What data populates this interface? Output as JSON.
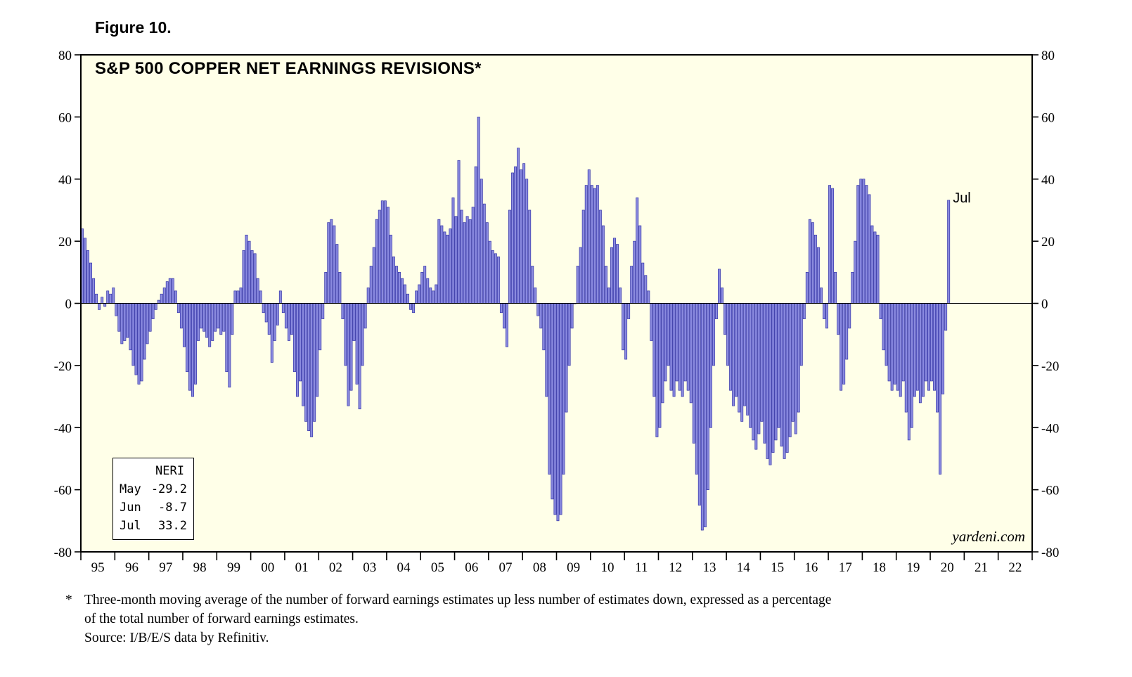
{
  "figure": {
    "label": "Figure 10."
  },
  "chart": {
    "title": "S&P 500 COPPER NET EARNINGS REVISIONS*",
    "watermark": "yardeni.com",
    "last_label": "Jul"
  },
  "legend": {
    "title": "NERI",
    "rows": [
      {
        "month": "May",
        "value": "-29.2"
      },
      {
        "month": "Jun",
        "value": "-8.7"
      },
      {
        "month": "Jul",
        "value": "33.2"
      }
    ]
  },
  "footnote": {
    "marker": "*",
    "line1": "Three-month moving average of the number of forward earnings estimates up less number of estimates down, expressed as a percentage",
    "line2": "of the total number of forward earnings estimates.",
    "line3": "Source: I/B/E/S data by Refinitiv."
  },
  "chart_data": {
    "type": "bar",
    "title": "S&P 500 COPPER NET EARNINGS REVISIONS*",
    "xlabel": "",
    "ylabel": "",
    "ylim": [
      -80,
      80
    ],
    "yticks": [
      -80,
      -60,
      -40,
      -20,
      0,
      20,
      40,
      60,
      80
    ],
    "grid": false,
    "legend_position": "bottom-left-box",
    "x_start": "Jan 1995",
    "x_end_data": "Jul 2020",
    "axis_total_months": 336,
    "year_labels": [
      "95",
      "96",
      "97",
      "98",
      "99",
      "00",
      "01",
      "02",
      "03",
      "04",
      "05",
      "06",
      "07",
      "08",
      "09",
      "10",
      "11",
      "12",
      "13",
      "14",
      "15",
      "16",
      "17",
      "18",
      "19",
      "20",
      "21",
      "22"
    ],
    "plot_bg": "#FFFFE8",
    "bar_color": "#8A8ADF",
    "bar_edge": "#3434A8",
    "last_point": {
      "label": "Jul",
      "value": 33.2
    },
    "series": [
      {
        "name": "NERI",
        "frequency": "monthly",
        "monthly_values": [
          24,
          21,
          17,
          13,
          8,
          3,
          -2,
          2,
          -1,
          4,
          3,
          5,
          -4,
          -9,
          -13,
          -12,
          -11,
          -15,
          -20,
          -23,
          -26,
          -25,
          -18,
          -13,
          -9,
          -5,
          -2,
          1,
          3,
          5,
          7,
          8,
          8,
          4,
          -3,
          -8,
          -14,
          -22,
          -28,
          -30,
          -26,
          -12,
          -8,
          -9,
          -11,
          -14,
          -12,
          -9,
          -8,
          -10,
          -9,
          -22,
          -27,
          -10,
          4,
          4,
          5,
          17,
          22,
          20,
          17,
          16,
          8,
          4,
          -3,
          -6,
          -10,
          -19,
          -12,
          -7,
          4,
          -3,
          -8,
          -12,
          -10,
          -22,
          -30,
          -25,
          -33,
          -38,
          -41,
          -43,
          -38,
          -30,
          -15,
          -5,
          10,
          26,
          27,
          25,
          19,
          10,
          -5,
          -20,
          -33,
          -28,
          -12,
          -26,
          -34,
          -20,
          -8,
          5,
          12,
          18,
          27,
          30,
          33,
          33,
          31,
          22,
          15,
          12,
          10,
          8,
          6,
          3,
          -2,
          -3,
          4,
          6,
          10,
          12,
          8,
          5,
          4,
          6,
          27,
          25,
          23,
          22,
          24,
          34,
          28,
          46,
          30,
          26,
          28,
          27,
          31,
          44,
          60,
          40,
          32,
          26,
          20,
          17,
          16,
          15,
          -3,
          -8,
          -14,
          30,
          42,
          44,
          50,
          43,
          45,
          40,
          30,
          12,
          5,
          -4,
          -8,
          -15,
          -30,
          -55,
          -63,
          -68,
          -70,
          -68,
          -55,
          -35,
          -20,
          -8,
          0,
          12,
          18,
          30,
          38,
          43,
          38,
          37,
          38,
          30,
          25,
          12,
          5,
          18,
          21,
          19,
          5,
          -15,
          -18,
          -5,
          12,
          20,
          34,
          25,
          13,
          9,
          4,
          -12,
          -30,
          -43,
          -40,
          -32,
          -25,
          -20,
          -28,
          -30,
          -25,
          -28,
          -30,
          -25,
          -28,
          -32,
          -45,
          -55,
          -65,
          -73,
          -72,
          -60,
          -40,
          -20,
          -5,
          11,
          5,
          -10,
          -20,
          -28,
          -33,
          -30,
          -35,
          -38,
          -33,
          -36,
          -40,
          -44,
          -47,
          -42,
          -38,
          -45,
          -50,
          -52,
          -48,
          -44,
          -40,
          -46,
          -50,
          -48,
          -43,
          -38,
          -42,
          -35,
          -20,
          -5,
          10,
          27,
          26,
          22,
          18,
          5,
          -5,
          -8,
          38,
          37,
          10,
          -10,
          -28,
          -26,
          -18,
          -8,
          10,
          20,
          38,
          40,
          40,
          38,
          35,
          25,
          23,
          22,
          -5,
          -15,
          -20,
          -25,
          -28,
          -26,
          -28,
          -30,
          -25,
          -35,
          -44,
          -40,
          -30,
          -28,
          -32,
          -30,
          -25,
          -28,
          -25,
          -28,
          -35,
          -55,
          -29.2,
          -8.7,
          33.2
        ]
      }
    ]
  }
}
